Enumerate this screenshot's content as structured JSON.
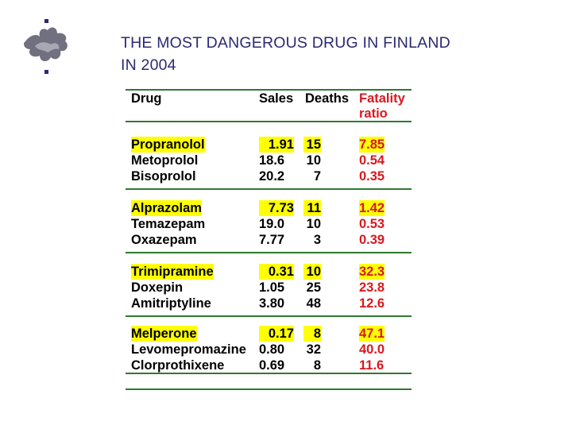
{
  "title": [
    "THE MOST DANGEROUS DRUG IN FINLAND",
    "IN  2004"
  ],
  "columns": {
    "drug": "Drug",
    "sales": "Sales",
    "deaths": "Deaths",
    "fatality": [
      "Fatality",
      "ratio"
    ]
  },
  "groups": [
    {
      "rows": [
        {
          "drug": "Propranolol",
          "sales": "1.91",
          "deaths": "15",
          "ratio": "7.85",
          "highlight": true
        },
        {
          "drug": "Metoprolol",
          "sales": "18.6",
          "deaths": "10",
          "ratio": "0.54",
          "highlight": false
        },
        {
          "drug": "Bisoprolol",
          "sales": "20.2",
          "deaths": "7",
          "ratio": "0.35",
          "highlight": false
        }
      ]
    },
    {
      "rows": [
        {
          "drug": "Alprazolam",
          "sales": "7.73",
          "deaths": "11",
          "ratio": "1.42",
          "highlight": true
        },
        {
          "drug": "Temazepam",
          "sales": "19.0",
          "deaths": "10",
          "ratio": "0.53",
          "highlight": false
        },
        {
          "drug": "Oxazepam",
          "sales": "7.77",
          "deaths": "3",
          "ratio": "0.39",
          "highlight": false
        }
      ]
    },
    {
      "rows": [
        {
          "drug": "Trimipramine",
          "sales": "0.31",
          "deaths": "10",
          "ratio": "32.3",
          "highlight": true
        },
        {
          "drug": "Doxepin",
          "sales": "1.05",
          "deaths": "25",
          "ratio": "23.8",
          "highlight": false
        },
        {
          "drug": "Amitriptyline",
          "sales": "3.80",
          "deaths": "48",
          "ratio": "12.6",
          "highlight": false
        }
      ]
    },
    {
      "rows": [
        {
          "drug": "Melperone",
          "sales": "0.17",
          "deaths": "8",
          "ratio": "47.1",
          "highlight": true
        },
        {
          "drug": "Levomepromazine",
          "sales": "0.80",
          "deaths": "32",
          "ratio": "40.0",
          "highlight": false
        },
        {
          "drug": "Clorprothixene",
          "sales": "0.69",
          "deaths": "8",
          "ratio": "11.6",
          "highlight": false
        }
      ]
    }
  ],
  "colors": {
    "title": "#2a2a72",
    "rule": "#2f7a2f",
    "ratio": "#d9181f",
    "highlight": "#ffff00",
    "logo": "#707080"
  },
  "logo_icon": "university-flame-logo"
}
